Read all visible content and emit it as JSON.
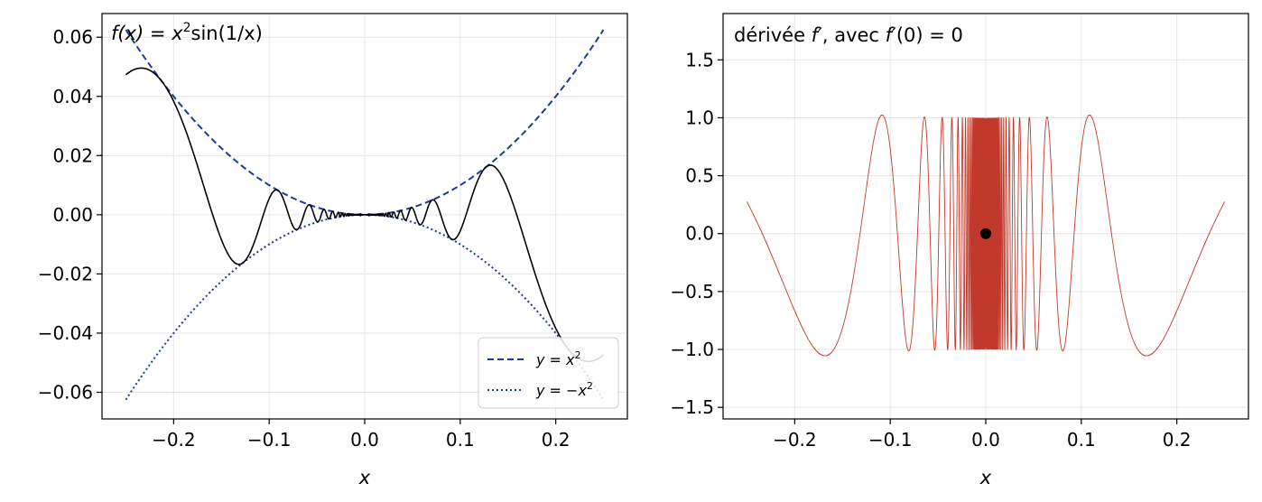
{
  "chart_data": [
    {
      "type": "line",
      "title": "f(x) = x²sin(1/x)",
      "title_parts": {
        "prefix": "f",
        "arg": "(x) = x",
        "sup": "2",
        "suffix": "sin(1/x)"
      },
      "xlabel": "x",
      "ylabel": "",
      "xlim": [
        -0.275,
        0.275
      ],
      "ylim": [
        -0.069,
        0.068
      ],
      "xticks": [
        -0.2,
        -0.1,
        0.0,
        0.1,
        0.2
      ],
      "xtick_labels": [
        "−0.2",
        "−0.1",
        "0.0",
        "0.1",
        "0.2"
      ],
      "yticks": [
        -0.06,
        -0.04,
        -0.02,
        0.0,
        0.02,
        0.04,
        0.06
      ],
      "ytick_labels": [
        "−0.06",
        "−0.04",
        "−0.02",
        "0.00",
        "0.02",
        "0.04",
        "0.06"
      ],
      "grid": true,
      "legend_position": "lower-right",
      "x_domain": [
        -0.25,
        0.25
      ],
      "series": [
        {
          "function": "x^2*sin(1/x)",
          "color": "#000000",
          "style": "solid"
        },
        {
          "name": "y = x²",
          "function": "x^2",
          "color": "#1f3a9e",
          "style": "dashed"
        },
        {
          "name": "y = −x²",
          "function": "-x^2",
          "color": "#1f3a9e",
          "style": "dotted"
        }
      ],
      "legend": [
        {
          "prefix": "y = x",
          "sup": "2",
          "style": "dashed",
          "color": "#1f3a9e"
        },
        {
          "prefix": "y = −x",
          "sup": "2",
          "style": "dotted",
          "color": "#1f3a9e"
        }
      ]
    },
    {
      "type": "line",
      "title": "dérivée f′, avec f′(0) = 0",
      "title_parts": {
        "a": "dérivée ",
        "b": "f′",
        "c": ", avec ",
        "d": "f′",
        "e": "(0) = 0"
      },
      "xlabel": "x",
      "ylabel": "",
      "xlim": [
        -0.275,
        0.275
      ],
      "ylim": [
        -1.6,
        1.9
      ],
      "xticks": [
        -0.2,
        -0.1,
        0.0,
        0.1,
        0.2
      ],
      "xtick_labels": [
        "−0.2",
        "−0.1",
        "0.0",
        "0.1",
        "0.2"
      ],
      "yticks": [
        -1.5,
        -1.0,
        -0.5,
        0.0,
        0.5,
        1.0,
        1.5
      ],
      "ytick_labels": [
        "−1.5",
        "−1.0",
        "−0.5",
        "0.0",
        "0.5",
        "1.0",
        "1.5"
      ],
      "grid": true,
      "x_domain": [
        -0.25,
        0.25
      ],
      "series": [
        {
          "function": "2x*sin(1/x) - cos(1/x)",
          "color": "#c0392b",
          "style": "solid"
        }
      ],
      "points": [
        {
          "x": 0,
          "y": 0,
          "color": "#000000"
        }
      ]
    }
  ]
}
